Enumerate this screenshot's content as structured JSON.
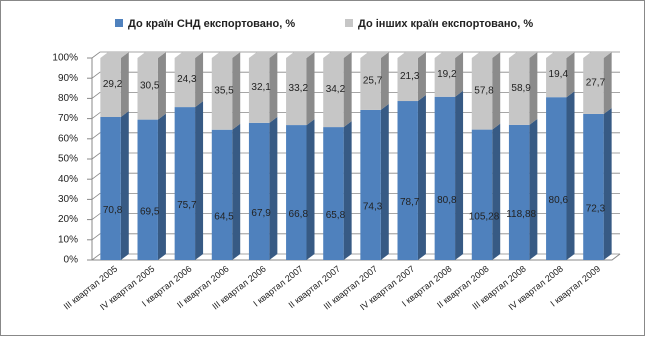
{
  "chart_data": {
    "type": "bar",
    "stack": "percent",
    "categories": [
      "III квартал 2005",
      "IV квартал 2005",
      "I квартал 2006",
      "II квартал 2006",
      "III квартал 2006",
      "I квартал 2007",
      "II квартал 2007",
      "III квартал 2007",
      "IV квартал 2007",
      "I квартал 2008",
      "II квартал 2008",
      "III квартал 2008",
      "IV квартал 2008",
      "I квартал 2009"
    ],
    "series": [
      {
        "name": "До країн СНД експортовано, %",
        "color": "#4f81bd",
        "values": [
          70.8,
          69.5,
          75.7,
          64.5,
          67.9,
          66.8,
          65.8,
          74.3,
          78.7,
          80.8,
          105.28,
          118.88,
          80.6,
          72.3
        ],
        "value_labels": [
          "70,8",
          "69,5",
          "75,7",
          "64,5",
          "67,9",
          "66,8",
          "65,8",
          "74,3",
          "78,7",
          "80,8",
          "105,28",
          "118,88",
          "80,6",
          "72,3"
        ]
      },
      {
        "name": "До інших країн експортовано, %",
        "color": "#c6c6c6",
        "values": [
          29.2,
          30.5,
          24.3,
          35.5,
          32.1,
          33.2,
          34.2,
          25.7,
          21.3,
          19.2,
          57.8,
          58.9,
          19.4,
          27.7
        ],
        "value_labels": [
          "29,2",
          "30,5",
          "24,3",
          "35,5",
          "32,1",
          "33,2",
          "34,2",
          "25,7",
          "21,3",
          "19,2",
          "57,8",
          "58,9",
          "19,4",
          "27,7"
        ]
      }
    ],
    "ylim": [
      0,
      100
    ],
    "yticks": [
      {
        "value": 0,
        "label": "0%"
      },
      {
        "value": 10,
        "label": "10%"
      },
      {
        "value": 20,
        "label": "20%"
      },
      {
        "value": 30,
        "label": "30%"
      },
      {
        "value": 40,
        "label": "40%"
      },
      {
        "value": 50,
        "label": "50%"
      },
      {
        "value": 60,
        "label": "60%"
      },
      {
        "value": 70,
        "label": "70%"
      },
      {
        "value": 80,
        "label": "80%"
      },
      {
        "value": 90,
        "label": "90%"
      },
      {
        "value": 100,
        "label": "100%"
      }
    ],
    "grid": true,
    "legend": "top"
  }
}
